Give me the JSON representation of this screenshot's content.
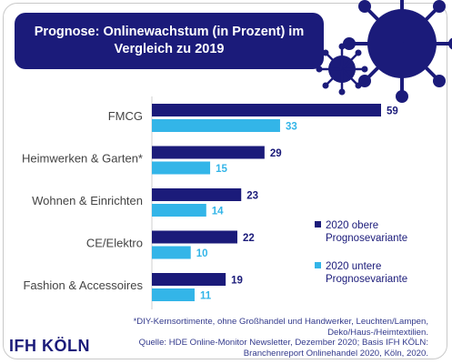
{
  "title": "Prognose: Onlinewachstum (in Prozent) im Vergleich zu 2019",
  "logo": "IFH KÖLN",
  "footnote": [
    "*DIY-Kernsortimente, ohne Großhandel und Handwerker, Leuchten/Lampen,",
    "Deko/Haus-/Heimtextilien.",
    "Quelle: HDE Online-Monitor Newsletter, Dezember 2020; Basis IFH KÖLN:",
    "Branchenreport Onlinehandel 2020, Köln, 2020."
  ],
  "colors": {
    "dark": "#1b1b7a",
    "light": "#33b5e8",
    "label": "#444444"
  },
  "icons": [
    "virus-icon-large",
    "virus-icon-small"
  ],
  "chart_data": {
    "type": "bar",
    "orientation": "horizontal",
    "categories": [
      "FMCG",
      "Heimwerken & Garten*",
      "Wohnen & Einrichten",
      "CE/Elektro",
      "Fashion & Accessoires"
    ],
    "series": [
      {
        "name": "2020 obere Prognosevariante",
        "values": [
          59,
          29,
          23,
          22,
          19
        ]
      },
      {
        "name": "2020 untere Prognosevariante",
        "values": [
          33,
          15,
          14,
          10,
          11
        ]
      }
    ],
    "legend": [
      [
        "2020 obere",
        "Prognosevariante"
      ],
      [
        "2020 untere",
        "Prognosevariante"
      ]
    ],
    "legend_position": "right",
    "grid": false,
    "xlim": [
      0,
      59
    ]
  }
}
